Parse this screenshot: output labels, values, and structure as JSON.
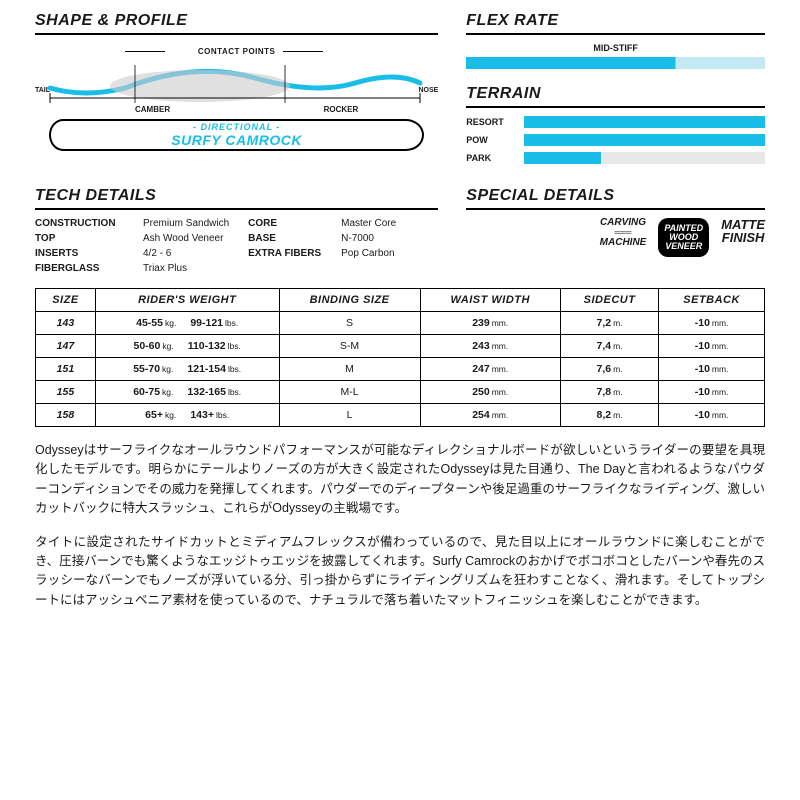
{
  "colors": {
    "accent": "#19bde8",
    "text": "#1a1a1a"
  },
  "shape": {
    "title": "SHAPE & PROFILE",
    "contact_points": "CONTACT POINTS",
    "tail": "TAIL",
    "nose": "NOSE",
    "camber": "CAMBER",
    "rocker": "ROCKER",
    "directional": "- DIRECTIONAL -",
    "camrock": "SURFY CAMROCK"
  },
  "flex": {
    "title": "FLEX RATE",
    "label": "MID-STIFF",
    "fill_pct": 70
  },
  "terrain": {
    "title": "TERRAIN",
    "items": [
      {
        "label": "RESORT",
        "pct": 100
      },
      {
        "label": "POW",
        "pct": 100
      },
      {
        "label": "PARK",
        "pct": 32
      }
    ]
  },
  "tech": {
    "title": "TECH DETAILS",
    "rows": [
      {
        "k1": "CONSTRUCTION",
        "v1": "Premium Sandwich",
        "k2": "CORE",
        "v2": "Master Core"
      },
      {
        "k1": "TOP",
        "v1": "Ash Wood Veneer",
        "k2": "BASE",
        "v2": "N-7000"
      },
      {
        "k1": "INSERTS",
        "v1": "4/2 - 6",
        "k2": "EXTRA FIBERS",
        "v2": "Pop Carbon"
      },
      {
        "k1": "FIBERGLASS",
        "v1": "Triax Plus",
        "k2": "",
        "v2": ""
      }
    ]
  },
  "special": {
    "title": "SPECIAL DETAILS",
    "badges": {
      "carving": "CARVING\nMACHINE",
      "pwv": "PAINTED\nWOOD\nVENEER",
      "matte": "MATTE\nFINISH"
    }
  },
  "table": {
    "headers": [
      "SIZE",
      "RIDER'S WEIGHT",
      "BINDING SIZE",
      "WAIST WIDTH",
      "SIDECUT",
      "SETBACK"
    ],
    "units": {
      "weight_kg": "kg.",
      "weight_lb": "lbs.",
      "waist": "mm.",
      "sidecut": "m.",
      "setback": "mm."
    },
    "rows": [
      {
        "size": "143",
        "kg": "45-55",
        "lb": "99-121",
        "binding": "S",
        "waist": "239",
        "sidecut": "7,2",
        "setback": "-10"
      },
      {
        "size": "147",
        "kg": "50-60",
        "lb": "110-132",
        "binding": "S-M",
        "waist": "243",
        "sidecut": "7,4",
        "setback": "-10"
      },
      {
        "size": "151",
        "kg": "55-70",
        "lb": "121-154",
        "binding": "M",
        "waist": "247",
        "sidecut": "7,6",
        "setback": "-10"
      },
      {
        "size": "155",
        "kg": "60-75",
        "lb": "132-165",
        "binding": "M-L",
        "waist": "250",
        "sidecut": "7,8",
        "setback": "-10"
      },
      {
        "size": "158",
        "kg": "65+",
        "lb": "143+",
        "binding": "L",
        "waist": "254",
        "sidecut": "8,2",
        "setback": "-10"
      }
    ]
  },
  "description": {
    "p1": "Odysseyはサーフライクなオールラウンドパフォーマンスが可能なディレクショナルボードが欲しいというライダーの要望を具現化したモデルです。明らかにテールよりノーズの方が大きく設定されたOdysseyは見た目通り、The Dayと言われるようなパウダーコンディションでその威力を発揮してくれます。パウダーでのディープターンや後足過重のサーフライクなライディング、激しいカットバックに特大スラッシュ、これらがOdysseyの主戦場です。",
    "p2": "タイトに設定されたサイドカットとミディアムフレックスが備わっているので、見た目以上にオールラウンドに楽しむことができ、圧接バーンでも驚くようなエッジトゥエッジを披露してくれます。Surfy Camrockのおかげでボコボコとしたバーンや春先のスラッシーなバーンでもノーズが浮いている分、引っ掛からずにライディングリズムを狂わすことなく、滑れます。そしてトップシートにはアッシュベニア素材を使っているので、ナチュラルで落ち着いたマットフィニッシュを楽しむことができます。"
  }
}
